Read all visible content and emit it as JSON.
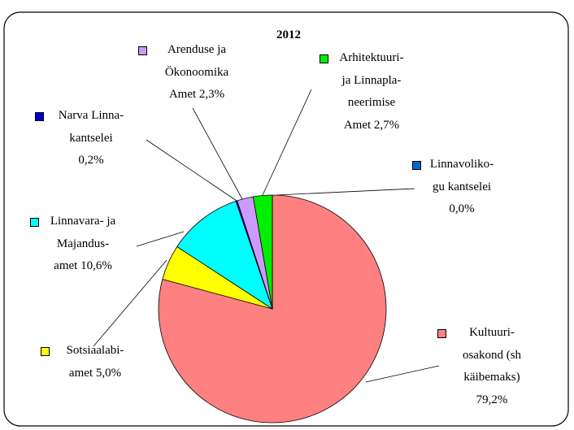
{
  "chart_data": {
    "type": "pie",
    "title": "2012",
    "categories": [
      "Kultuuri-\nosakond (sh\nkäibemaks)",
      "Sotsiaalabi-\namet",
      "Linnavara- ja\nMajandus-\namet",
      "Narva Linna-\nkantselei",
      "Arenduse ja\nÖkonoomika\nAmet",
      "Arhitektuuri-\nja Linnapla-\nneerimise\nAmet",
      "Linnavoliko-\ngu kantselei"
    ],
    "values": [
      79.2,
      5.0,
      10.6,
      0.2,
      2.3,
      2.7,
      0.0
    ],
    "value_labels": [
      "79,2%",
      "5,0%",
      "10,6%",
      "0,2%",
      "2,3%",
      "2,7%",
      "0,0%"
    ],
    "colors": [
      "#ff8080",
      "#ffff00",
      "#00ffff",
      "#0000cc",
      "#cc99ff",
      "#00ee00",
      "#0066cc"
    ]
  }
}
